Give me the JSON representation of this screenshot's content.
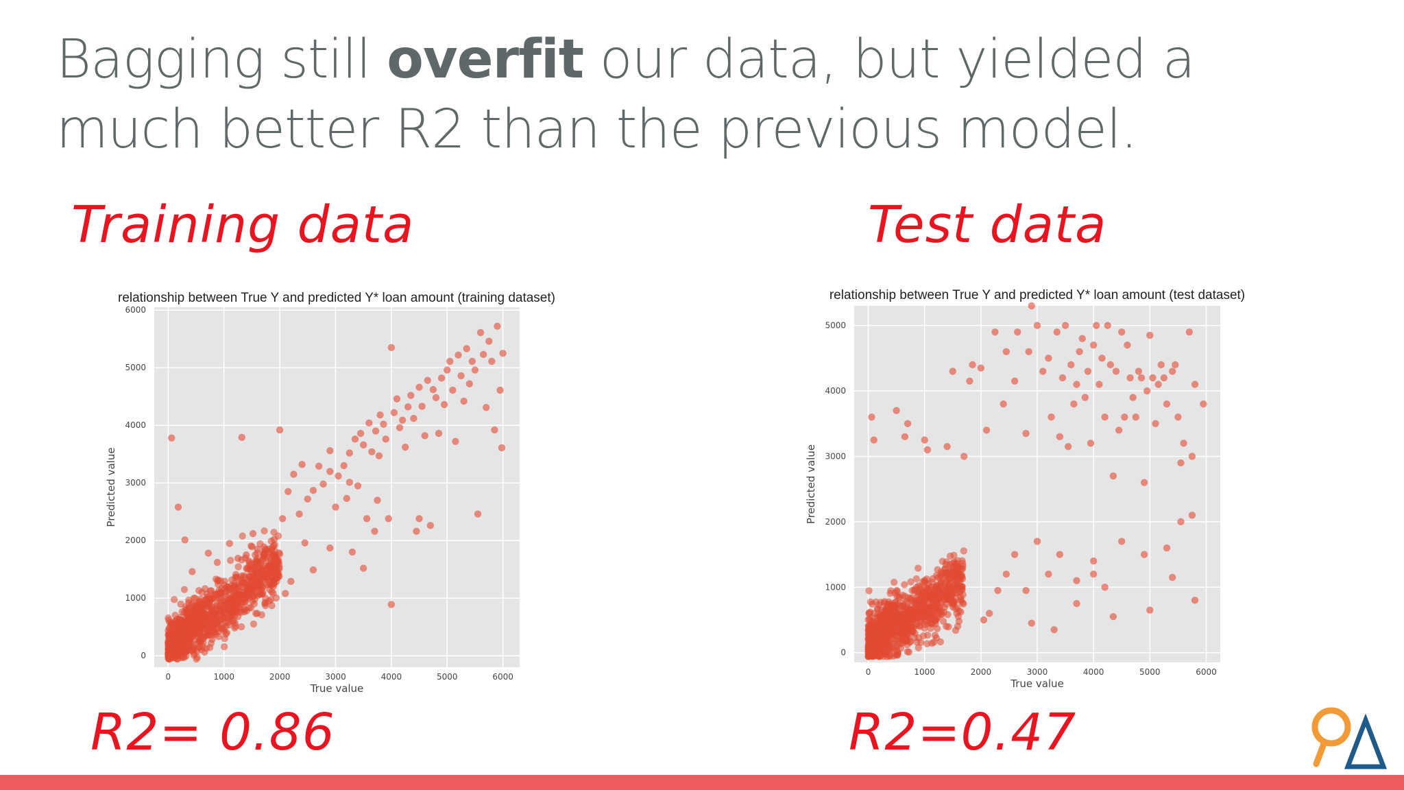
{
  "slide": {
    "headline_pre": "Bagging still ",
    "headline_bold": "overfit",
    "headline_post": " our data, but yielded a much better R2 than the previous model.",
    "left_label": "Training data",
    "right_label": "Test data",
    "left_r2": "R2= 0.86",
    "right_r2": "R2=0.47",
    "colors": {
      "accent": "#f05a5f",
      "handwriting": "#e8141f",
      "points": "#e24a33",
      "plot_bg": "#e5e5e5"
    }
  },
  "chart_data": [
    {
      "type": "scatter",
      "title": "relationship between True Y and predicted Y* loan amount (training dataset)",
      "xlabel": "True value",
      "ylabel": "Predicted value",
      "xlim": [
        -250,
        6300
      ],
      "ylim": [
        -200,
        6050
      ],
      "xticks": [
        0,
        1000,
        2000,
        3000,
        4000,
        5000,
        6000
      ],
      "yticks": [
        0,
        1000,
        2000,
        3000,
        4000,
        5000,
        6000
      ],
      "grid": true,
      "points": [
        [
          60,
          3780
        ],
        [
          1320,
          3790
        ],
        [
          180,
          2580
        ],
        [
          300,
          2010
        ],
        [
          1520,
          2120
        ],
        [
          720,
          1780
        ],
        [
          1100,
          1950
        ],
        [
          430,
          1460
        ],
        [
          880,
          1620
        ],
        [
          1250,
          1690
        ],
        [
          1600,
          1850
        ],
        [
          1900,
          2020
        ],
        [
          2050,
          2380
        ],
        [
          2150,
          2850
        ],
        [
          2250,
          3150
        ],
        [
          2000,
          3920
        ],
        [
          2350,
          2460
        ],
        [
          2450,
          1960
        ],
        [
          2500,
          2720
        ],
        [
          2600,
          2870
        ],
        [
          2700,
          3290
        ],
        [
          2780,
          2980
        ],
        [
          2900,
          3200
        ],
        [
          3000,
          2580
        ],
        [
          3050,
          3120
        ],
        [
          3150,
          3300
        ],
        [
          3250,
          3520
        ],
        [
          3200,
          2730
        ],
        [
          3350,
          3760
        ],
        [
          3400,
          2950
        ],
        [
          3450,
          3860
        ],
        [
          3500,
          3660
        ],
        [
          3560,
          2380
        ],
        [
          3600,
          4040
        ],
        [
          3650,
          3540
        ],
        [
          3700,
          2160
        ],
        [
          3720,
          3900
        ],
        [
          3780,
          3470
        ],
        [
          3800,
          4180
        ],
        [
          3860,
          4020
        ],
        [
          3900,
          3760
        ],
        [
          3950,
          2380
        ],
        [
          4000,
          5350
        ],
        [
          4050,
          4220
        ],
        [
          4100,
          4460
        ],
        [
          4000,
          890
        ],
        [
          4150,
          3960
        ],
        [
          4200,
          4090
        ],
        [
          4250,
          3620
        ],
        [
          4300,
          4320
        ],
        [
          4350,
          4520
        ],
        [
          4400,
          4120
        ],
        [
          4450,
          2160
        ],
        [
          4500,
          4660
        ],
        [
          4550,
          4330
        ],
        [
          4600,
          3820
        ],
        [
          4650,
          4780
        ],
        [
          4700,
          2260
        ],
        [
          4750,
          4620
        ],
        [
          4800,
          4480
        ],
        [
          4850,
          3860
        ],
        [
          4900,
          4820
        ],
        [
          4950,
          4360
        ],
        [
          5000,
          4960
        ],
        [
          5050,
          5110
        ],
        [
          5100,
          4610
        ],
        [
          5150,
          3720
        ],
        [
          5200,
          5220
        ],
        [
          5250,
          4860
        ],
        [
          5300,
          4420
        ],
        [
          5350,
          5330
        ],
        [
          5400,
          4720
        ],
        [
          5450,
          5110
        ],
        [
          5500,
          4960
        ],
        [
          5550,
          2460
        ],
        [
          5600,
          5610
        ],
        [
          5650,
          5230
        ],
        [
          5700,
          4310
        ],
        [
          5750,
          5460
        ],
        [
          5800,
          5110
        ],
        [
          5850,
          3920
        ],
        [
          5900,
          5720
        ],
        [
          5950,
          4610
        ],
        [
          6000,
          5250
        ],
        [
          5980,
          3610
        ],
        [
          2600,
          1490
        ],
        [
          2200,
          1290
        ],
        [
          2900,
          1870
        ],
        [
          3300,
          1800
        ],
        [
          1700,
          1200
        ],
        [
          1800,
          1560
        ],
        [
          2100,
          1080
        ],
        [
          3500,
          1520
        ],
        [
          4500,
          2380
        ],
        [
          3750,
          2700
        ],
        [
          3250,
          3010
        ],
        [
          2900,
          3560
        ],
        [
          2400,
          3320
        ],
        [
          1400,
          1750
        ],
        [
          940,
          1100
        ]
      ],
      "clusters": [
        {
          "x": [
            0,
            2000
          ],
          "y_center_slope": 0.75,
          "y_spread": 420,
          "count": 900
        },
        {
          "x": [
            0,
            600
          ],
          "y_center_slope": 1.0,
          "y_spread": 220,
          "count": 320
        }
      ],
      "annotation": "R2= 0.86"
    },
    {
      "type": "scatter",
      "title": "relationship between True Y and predicted Y* loan amount (test dataset)",
      "xlabel": "True value",
      "ylabel": "Predicted value",
      "xlim": [
        -250,
        6250
      ],
      "ylim": [
        -150,
        5300
      ],
      "xticks": [
        0,
        1000,
        2000,
        3000,
        4000,
        5000,
        6000
      ],
      "yticks": [
        0,
        1000,
        2000,
        3000,
        4000,
        5000
      ],
      "grid": true,
      "points": [
        [
          60,
          3600
        ],
        [
          500,
          3700
        ],
        [
          700,
          3500
        ],
        [
          100,
          3250
        ],
        [
          650,
          3300
        ],
        [
          1000,
          3250
        ],
        [
          1050,
          3100
        ],
        [
          1400,
          3150
        ],
        [
          1700,
          3000
        ],
        [
          1500,
          4300
        ],
        [
          1850,
          4400
        ],
        [
          2000,
          4350
        ],
        [
          1800,
          4150
        ],
        [
          2100,
          3400
        ],
        [
          2250,
          4900
        ],
        [
          2400,
          3800
        ],
        [
          2450,
          4600
        ],
        [
          2600,
          4150
        ],
        [
          2650,
          4900
        ],
        [
          2800,
          3350
        ],
        [
          2850,
          4600
        ],
        [
          2900,
          5300
        ],
        [
          3000,
          5000
        ],
        [
          3100,
          4300
        ],
        [
          3200,
          4500
        ],
        [
          3250,
          3600
        ],
        [
          3350,
          4900
        ],
        [
          3400,
          3300
        ],
        [
          3450,
          4200
        ],
        [
          3500,
          5000
        ],
        [
          3550,
          3150
        ],
        [
          3600,
          4400
        ],
        [
          3650,
          3800
        ],
        [
          3700,
          4100
        ],
        [
          3750,
          4600
        ],
        [
          3800,
          4800
        ],
        [
          3850,
          3900
        ],
        [
          3900,
          4300
        ],
        [
          3950,
          3200
        ],
        [
          4000,
          4700
        ],
        [
          4050,
          5000
        ],
        [
          4100,
          4100
        ],
        [
          4150,
          4500
        ],
        [
          4200,
          3600
        ],
        [
          4250,
          5000
        ],
        [
          4300,
          4400
        ],
        [
          4350,
          2700
        ],
        [
          4400,
          4300
        ],
        [
          4450,
          3400
        ],
        [
          4500,
          4900
        ],
        [
          4550,
          3600
        ],
        [
          4600,
          4700
        ],
        [
          4650,
          4200
        ],
        [
          4700,
          3900
        ],
        [
          4750,
          3600
        ],
        [
          4800,
          4300
        ],
        [
          4850,
          4200
        ],
        [
          4900,
          2600
        ],
        [
          4950,
          4000
        ],
        [
          5000,
          4850
        ],
        [
          5050,
          4200
        ],
        [
          5100,
          3500
        ],
        [
          5150,
          4100
        ],
        [
          5200,
          4400
        ],
        [
          5250,
          4200
        ],
        [
          5300,
          3800
        ],
        [
          5400,
          4300
        ],
        [
          5450,
          4400
        ],
        [
          5500,
          3600
        ],
        [
          5600,
          3200
        ],
        [
          5700,
          4900
        ],
        [
          5750,
          3000
        ],
        [
          5800,
          4100
        ],
        [
          5950,
          3800
        ],
        [
          5550,
          2900
        ],
        [
          5300,
          1600
        ],
        [
          4900,
          1500
        ],
        [
          4500,
          1700
        ],
        [
          4200,
          1000
        ],
        [
          4000,
          1400
        ],
        [
          3700,
          1100
        ],
        [
          3400,
          1500
        ],
        [
          3200,
          1200
        ],
        [
          3000,
          1700
        ],
        [
          2800,
          950
        ],
        [
          2600,
          1500
        ],
        [
          2450,
          1200
        ],
        [
          2300,
          950
        ],
        [
          2150,
          600
        ],
        [
          2050,
          500
        ],
        [
          2900,
          450
        ],
        [
          3300,
          350
        ],
        [
          4350,
          550
        ],
        [
          5000,
          650
        ],
        [
          5400,
          1150
        ],
        [
          5800,
          800
        ],
        [
          5750,
          2100
        ],
        [
          5550,
          2000
        ],
        [
          3700,
          750
        ],
        [
          4000,
          1200
        ]
      ],
      "clusters": [
        {
          "x": [
            0,
            1700
          ],
          "y_center_slope": 0.55,
          "y_spread": 420,
          "count": 900
        },
        {
          "x": [
            0,
            500
          ],
          "y_center_slope": 1.0,
          "y_spread": 200,
          "count": 250
        }
      ],
      "annotation": "R2=0.47"
    }
  ]
}
